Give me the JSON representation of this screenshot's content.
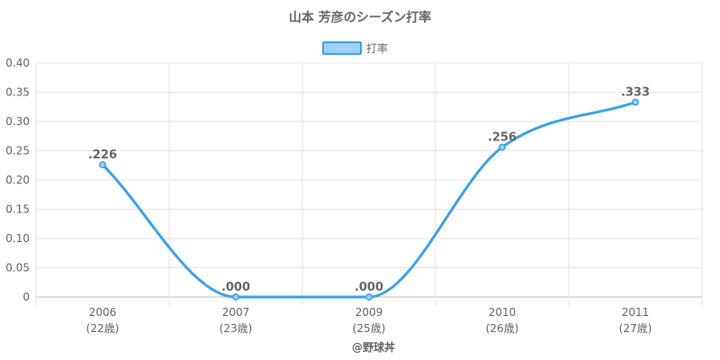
{
  "chart_data": {
    "type": "line",
    "title": "山本 芳彦のシーズン打率",
    "categories": [
      "2006",
      "2007",
      "2009",
      "2010",
      "2011"
    ],
    "category_sublabels": [
      "(22歳)",
      "(23歳)",
      "(25歳)",
      "(26歳)",
      "(27歳)"
    ],
    "series": [
      {
        "name": "打率",
        "values": [
          0.226,
          0.0,
          0.0,
          0.256,
          0.333
        ],
        "data_labels": [
          ".226",
          ".000",
          ".000",
          ".256",
          ".333"
        ]
      }
    ],
    "y_ticks": [
      "0",
      "0.05",
      "0.10",
      "0.15",
      "0.20",
      "0.25",
      "0.30",
      "0.35",
      "0.40"
    ],
    "ylim": [
      0,
      0.4
    ],
    "xlabel": "",
    "ylabel": "",
    "grid": true,
    "legend_position": "top-center",
    "colors": {
      "line": "#3ea1e6",
      "legend_fill": "#9fd0f3",
      "grid": "#e6e6e6",
      "text": "#666666"
    }
  },
  "credit": "@野球丼"
}
